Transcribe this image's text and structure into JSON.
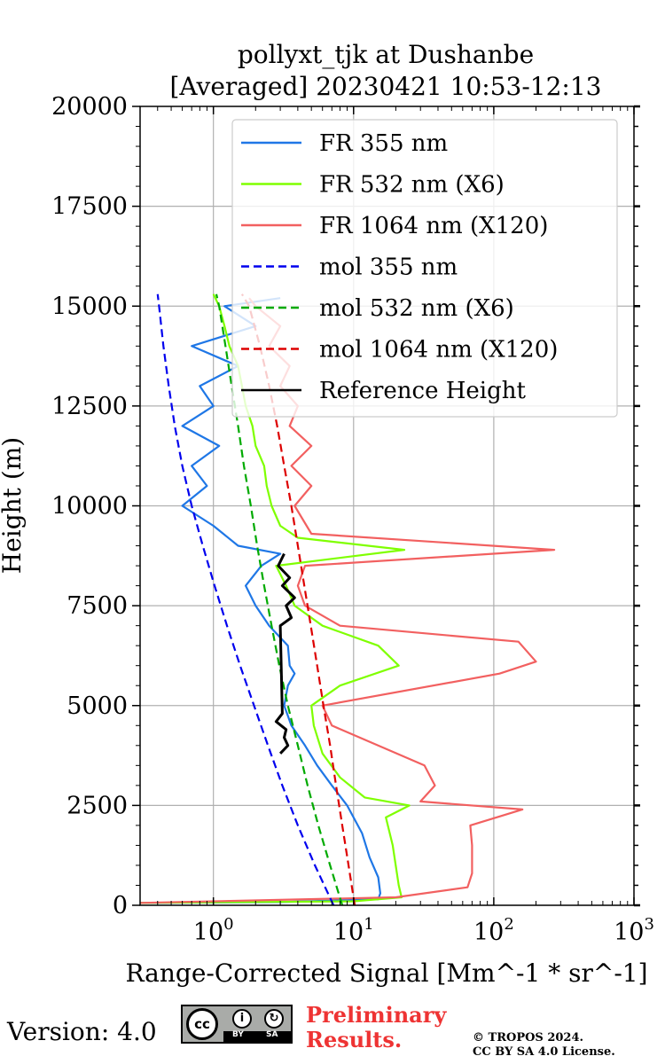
{
  "footer": {
    "version": "Version: 4.0",
    "license_badge": "CC BY SA",
    "preliminary_line1": "Preliminary",
    "preliminary_line2": "Results.",
    "copyright_line1": "© TROPOS 2024.",
    "copyright_line2": "CC BY SA 4.0 License."
  },
  "chart_data": {
    "type": "line",
    "title": [
      "pollyxt_tjk at Dushanbe",
      "[Averaged] 20230421 10:53-12:13"
    ],
    "xlabel": "Range-Corrected Signal [Mm^-1 * sr^-1]",
    "ylabel": "Height (m)",
    "xscale": "log",
    "xlim": [
      0.3,
      1000
    ],
    "ylim": [
      0,
      20000
    ],
    "xticks": [
      {
        "value": 1,
        "base": "10",
        "exp": "0"
      },
      {
        "value": 10,
        "base": "10",
        "exp": "1"
      },
      {
        "value": 100,
        "base": "10",
        "exp": "2"
      },
      {
        "value": 1000,
        "base": "10",
        "exp": "3"
      }
    ],
    "yticks": [
      "0",
      "2500",
      "5000",
      "7500",
      "10000",
      "12500",
      "15000",
      "17500",
      "20000"
    ],
    "grid": true,
    "legend_position": "top-right",
    "series": [
      {
        "name": "FR 355 nm",
        "color": "#1f77e6",
        "style": "solid",
        "points": [
          [
            0.3,
            60
          ],
          [
            3,
            80
          ],
          [
            15,
            150
          ],
          [
            15.5,
            300
          ],
          [
            15,
            700
          ],
          [
            13,
            1200
          ],
          [
            11.5,
            1800
          ],
          [
            9,
            2500
          ],
          [
            7,
            3000
          ],
          [
            5.5,
            3500
          ],
          [
            4.5,
            4000
          ],
          [
            3.6,
            4500
          ],
          [
            3.2,
            5000
          ],
          [
            3.4,
            5500
          ],
          [
            3.8,
            5800
          ],
          [
            3.5,
            6000
          ],
          [
            3.4,
            6500
          ],
          [
            2.5,
            7000
          ],
          [
            2.0,
            7500
          ],
          [
            1.7,
            8000
          ],
          [
            2.2,
            8500
          ],
          [
            3.0,
            8800
          ],
          [
            1.5,
            9000
          ],
          [
            1.0,
            9500
          ],
          [
            0.6,
            10000
          ],
          [
            0.9,
            10500
          ],
          [
            0.7,
            11000
          ],
          [
            1.1,
            11500
          ],
          [
            0.6,
            12000
          ],
          [
            1.0,
            12500
          ],
          [
            0.8,
            13000
          ],
          [
            1.5,
            13500
          ],
          [
            0.7,
            14000
          ],
          [
            2.0,
            14500
          ],
          [
            1.2,
            15000
          ],
          [
            3.0,
            15200
          ]
        ]
      },
      {
        "name": "FR 532 nm (X6)",
        "color": "#7fff00",
        "style": "solid",
        "points": [
          [
            0.3,
            60
          ],
          [
            10,
            100
          ],
          [
            22,
            200
          ],
          [
            21,
            500
          ],
          [
            19,
            1500
          ],
          [
            17,
            2200
          ],
          [
            25,
            2500
          ],
          [
            12,
            2700
          ],
          [
            8,
            3200
          ],
          [
            6,
            3800
          ],
          [
            5.2,
            4500
          ],
          [
            5.0,
            5000
          ],
          [
            8,
            5500
          ],
          [
            21,
            6000
          ],
          [
            15,
            6500
          ],
          [
            6,
            7000
          ],
          [
            3.8,
            7500
          ],
          [
            3.3,
            8000
          ],
          [
            2.8,
            8500
          ],
          [
            23,
            8900
          ],
          [
            4,
            9200
          ],
          [
            3.0,
            9500
          ],
          [
            2.6,
            10000
          ],
          [
            2.4,
            10500
          ],
          [
            2.3,
            11000
          ],
          [
            2.0,
            11500
          ],
          [
            1.9,
            12000
          ],
          [
            1.7,
            12500
          ],
          [
            1.6,
            13000
          ],
          [
            1.5,
            13500
          ],
          [
            1.3,
            14000
          ],
          [
            1.2,
            14500
          ],
          [
            1.1,
            15000
          ],
          [
            1.0,
            15300
          ]
        ]
      },
      {
        "name": "FR 1064 nm (X120)",
        "color": "#f26060",
        "style": "solid",
        "points": [
          [
            0.3,
            60
          ],
          [
            20,
            200
          ],
          [
            65,
            450
          ],
          [
            70,
            800
          ],
          [
            70,
            1500
          ],
          [
            68,
            2000
          ],
          [
            160,
            2400
          ],
          [
            30,
            2600
          ],
          [
            38,
            3000
          ],
          [
            32,
            3500
          ],
          [
            7,
            4500
          ],
          [
            6,
            5000
          ],
          [
            110,
            5800
          ],
          [
            200,
            6100
          ],
          [
            150,
            6600
          ],
          [
            8,
            7000
          ],
          [
            4.5,
            7500
          ],
          [
            4.0,
            8000
          ],
          [
            4.5,
            8500
          ],
          [
            270,
            8900
          ],
          [
            5,
            9300
          ],
          [
            3.8,
            10000
          ],
          [
            5,
            10500
          ],
          [
            3.6,
            11000
          ],
          [
            5,
            11500
          ],
          [
            3.5,
            12000
          ],
          [
            4,
            12500
          ],
          [
            3,
            13000
          ],
          [
            3.5,
            13500
          ],
          [
            2.5,
            14000
          ],
          [
            3,
            14500
          ],
          [
            2.0,
            15000
          ],
          [
            1.8,
            15200
          ]
        ]
      },
      {
        "name": "mol 355 nm",
        "color": "#0000ee",
        "style": "dashed",
        "points": [
          [
            7.2,
            0
          ],
          [
            5.3,
            1000
          ],
          [
            4.0,
            2000
          ],
          [
            3.1,
            3000
          ],
          [
            2.45,
            4000
          ],
          [
            1.95,
            5000
          ],
          [
            1.55,
            6000
          ],
          [
            1.25,
            7000
          ],
          [
            1.02,
            8000
          ],
          [
            0.84,
            9000
          ],
          [
            0.7,
            10000
          ],
          [
            0.6,
            11000
          ],
          [
            0.53,
            12000
          ],
          [
            0.48,
            13000
          ],
          [
            0.44,
            14000
          ],
          [
            0.41,
            15000
          ],
          [
            0.4,
            15300
          ]
        ]
      },
      {
        "name": "mol 532 nm (X6)",
        "color": "#00aa00",
        "style": "dashed",
        "points": [
          [
            8.3,
            0
          ],
          [
            6.8,
            1000
          ],
          [
            5.6,
            2000
          ],
          [
            4.7,
            3000
          ],
          [
            4.0,
            4000
          ],
          [
            3.4,
            5000
          ],
          [
            2.95,
            6000
          ],
          [
            2.6,
            7000
          ],
          [
            2.3,
            8000
          ],
          [
            2.05,
            9000
          ],
          [
            1.85,
            10000
          ],
          [
            1.65,
            11000
          ],
          [
            1.5,
            12000
          ],
          [
            1.35,
            13000
          ],
          [
            1.22,
            14000
          ],
          [
            1.1,
            15000
          ],
          [
            1.05,
            15300
          ]
        ]
      },
      {
        "name": "mol 1064 nm (X120)",
        "color": "#dd0000",
        "style": "dashed",
        "points": [
          [
            10.2,
            0
          ],
          [
            9.2,
            1000
          ],
          [
            8.3,
            2000
          ],
          [
            7.5,
            3000
          ],
          [
            6.8,
            4000
          ],
          [
            6.1,
            5000
          ],
          [
            5.5,
            6000
          ],
          [
            4.95,
            7000
          ],
          [
            4.45,
            8000
          ],
          [
            4.0,
            9000
          ],
          [
            3.6,
            10000
          ],
          [
            3.2,
            11000
          ],
          [
            2.85,
            12000
          ],
          [
            2.5,
            13000
          ],
          [
            2.15,
            14000
          ],
          [
            1.8,
            15000
          ],
          [
            1.6,
            15300
          ]
        ]
      },
      {
        "name": "Reference Height",
        "color": "#000000",
        "style": "solid",
        "points": [
          [
            3.0,
            3800
          ],
          [
            3.4,
            4000
          ],
          [
            3.2,
            4200
          ],
          [
            3.3,
            4400
          ],
          [
            2.8,
            4600
          ],
          [
            3.1,
            4800
          ],
          [
            3.0,
            7000
          ],
          [
            3.6,
            7200
          ],
          [
            3.3,
            7500
          ],
          [
            3.8,
            7700
          ],
          [
            3.1,
            8000
          ],
          [
            3.5,
            8200
          ],
          [
            2.9,
            8500
          ],
          [
            3.2,
            8800
          ]
        ]
      }
    ]
  }
}
